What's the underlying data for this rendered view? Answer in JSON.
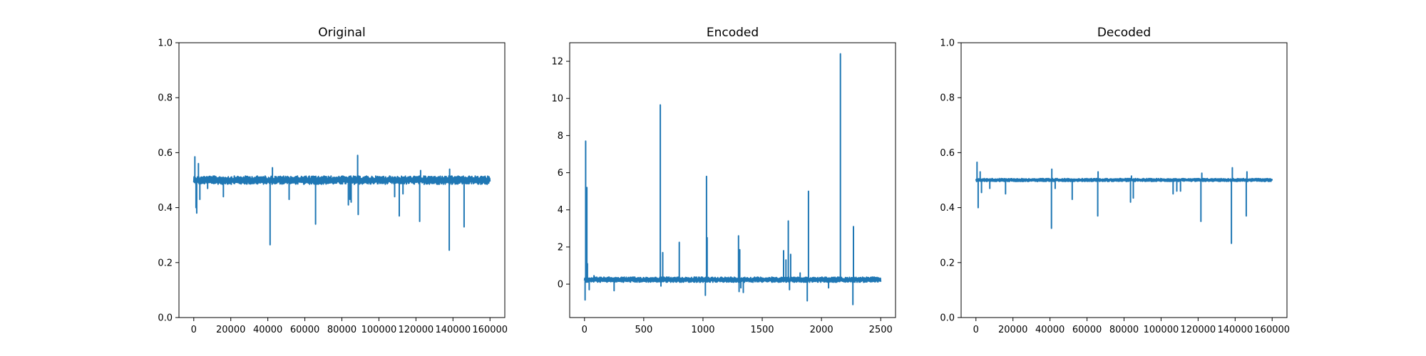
{
  "chart_data": [
    {
      "type": "line",
      "title": "Original",
      "xlabel": "",
      "ylabel": "",
      "xlim": [
        -8000,
        168000
      ],
      "ylim": [
        0.0,
        1.0
      ],
      "xticks": [
        0,
        20000,
        40000,
        60000,
        80000,
        100000,
        120000,
        140000,
        160000
      ],
      "yticks": [
        "0.0",
        "0.2",
        "0.4",
        "0.6",
        "0.8",
        "1.0"
      ],
      "grid": false,
      "color": "#1f77b4",
      "n_points": 160000,
      "baseline": 0.5,
      "band": [
        0.485,
        0.515
      ],
      "spikes": [
        {
          "x": 600,
          "y": 0.585
        },
        {
          "x": 1200,
          "y": 0.4
        },
        {
          "x": 1600,
          "y": 0.38
        },
        {
          "x": 2500,
          "y": 0.56
        },
        {
          "x": 3300,
          "y": 0.43
        },
        {
          "x": 7500,
          "y": 0.47
        },
        {
          "x": 16000,
          "y": 0.44
        },
        {
          "x": 41200,
          "y": 0.265
        },
        {
          "x": 42500,
          "y": 0.545
        },
        {
          "x": 51500,
          "y": 0.43
        },
        {
          "x": 65800,
          "y": 0.34
        },
        {
          "x": 83500,
          "y": 0.41
        },
        {
          "x": 84300,
          "y": 0.43
        },
        {
          "x": 85000,
          "y": 0.42
        },
        {
          "x": 88500,
          "y": 0.59
        },
        {
          "x": 88800,
          "y": 0.375
        },
        {
          "x": 108500,
          "y": 0.44
        },
        {
          "x": 111000,
          "y": 0.37
        },
        {
          "x": 113000,
          "y": 0.45
        },
        {
          "x": 122000,
          "y": 0.35
        },
        {
          "x": 122500,
          "y": 0.535
        },
        {
          "x": 138000,
          "y": 0.245
        },
        {
          "x": 138200,
          "y": 0.54
        },
        {
          "x": 146000,
          "y": 0.33
        }
      ]
    },
    {
      "type": "line",
      "title": "Encoded",
      "xlabel": "",
      "ylabel": "",
      "xlim": [
        -125,
        2625
      ],
      "ylim": [
        -1.8,
        13.0
      ],
      "xticks": [
        0,
        500,
        1000,
        1500,
        2000,
        2500
      ],
      "yticks": [
        0,
        2,
        4,
        6,
        8,
        10,
        12
      ],
      "grid": false,
      "color": "#1f77b4",
      "n_points": 2500,
      "baseline": 0.25,
      "band": [
        0.1,
        0.38
      ],
      "spikes": [
        {
          "x": 5,
          "y": -0.85
        },
        {
          "x": 10,
          "y": 7.7
        },
        {
          "x": 20,
          "y": 5.2
        },
        {
          "x": 25,
          "y": 1.1
        },
        {
          "x": 40,
          "y": -0.3
        },
        {
          "x": 80,
          "y": 0.45
        },
        {
          "x": 250,
          "y": -0.35
        },
        {
          "x": 640,
          "y": 9.65
        },
        {
          "x": 645,
          "y": -0.1
        },
        {
          "x": 660,
          "y": 1.7
        },
        {
          "x": 800,
          "y": 2.25
        },
        {
          "x": 1020,
          "y": -0.6
        },
        {
          "x": 1030,
          "y": 5.8
        },
        {
          "x": 1035,
          "y": 2.5
        },
        {
          "x": 1300,
          "y": 2.6
        },
        {
          "x": 1305,
          "y": -0.4
        },
        {
          "x": 1310,
          "y": 1.85
        },
        {
          "x": 1320,
          "y": -0.2
        },
        {
          "x": 1340,
          "y": -0.45
        },
        {
          "x": 1680,
          "y": 1.8
        },
        {
          "x": 1700,
          "y": 1.3
        },
        {
          "x": 1720,
          "y": 3.4
        },
        {
          "x": 1730,
          "y": -0.3
        },
        {
          "x": 1740,
          "y": 1.6
        },
        {
          "x": 1820,
          "y": 0.6
        },
        {
          "x": 1880,
          "y": -0.9
        },
        {
          "x": 1890,
          "y": 5.0
        },
        {
          "x": 2060,
          "y": -0.2
        },
        {
          "x": 2160,
          "y": 12.4
        },
        {
          "x": 2265,
          "y": -1.1
        },
        {
          "x": 2270,
          "y": 3.1
        }
      ]
    },
    {
      "type": "line",
      "title": "Decoded",
      "xlabel": "",
      "ylabel": "",
      "xlim": [
        -8000,
        168000
      ],
      "ylim": [
        0.0,
        1.0
      ],
      "xticks": [
        0,
        20000,
        40000,
        60000,
        80000,
        100000,
        120000,
        140000,
        160000
      ],
      "yticks": [
        "0.0",
        "0.2",
        "0.4",
        "0.6",
        "0.8",
        "1.0"
      ],
      "grid": false,
      "color": "#1f77b4",
      "n_points": 160000,
      "baseline": 0.5,
      "band": [
        0.495,
        0.506
      ],
      "spikes": [
        {
          "x": 600,
          "y": 0.565
        },
        {
          "x": 1200,
          "y": 0.4
        },
        {
          "x": 2300,
          "y": 0.53
        },
        {
          "x": 3000,
          "y": 0.455
        },
        {
          "x": 7500,
          "y": 0.47
        },
        {
          "x": 16000,
          "y": 0.45
        },
        {
          "x": 40800,
          "y": 0.325
        },
        {
          "x": 41000,
          "y": 0.54
        },
        {
          "x": 42800,
          "y": 0.47
        },
        {
          "x": 52000,
          "y": 0.43
        },
        {
          "x": 65800,
          "y": 0.37
        },
        {
          "x": 66000,
          "y": 0.53
        },
        {
          "x": 83500,
          "y": 0.42
        },
        {
          "x": 84000,
          "y": 0.515
        },
        {
          "x": 85000,
          "y": 0.435
        },
        {
          "x": 106500,
          "y": 0.45
        },
        {
          "x": 108500,
          "y": 0.46
        },
        {
          "x": 110500,
          "y": 0.46
        },
        {
          "x": 121500,
          "y": 0.35
        },
        {
          "x": 122000,
          "y": 0.525
        },
        {
          "x": 138000,
          "y": 0.27
        },
        {
          "x": 138500,
          "y": 0.545
        },
        {
          "x": 146000,
          "y": 0.37
        },
        {
          "x": 146400,
          "y": 0.53
        }
      ]
    }
  ]
}
